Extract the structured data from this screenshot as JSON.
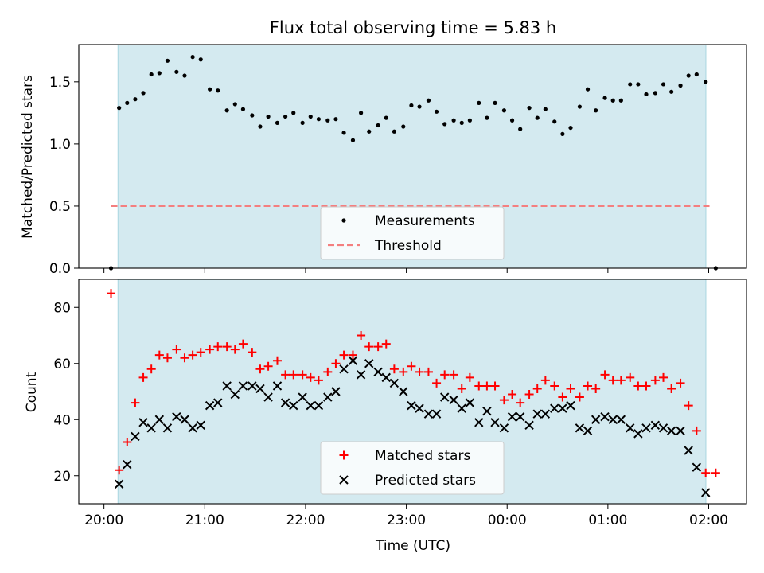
{
  "chart_data": [
    {
      "type": "scatter",
      "title": "Flux total observing time = 5.83 h",
      "xlabel": "",
      "ylabel": "Matched/Predicted stars",
      "ylim": [
        0,
        1.8
      ],
      "yticks": [
        0.0,
        0.5,
        1.0,
        1.5
      ],
      "ytick_labels": [
        "0.0",
        "0.5",
        "1.0",
        "1.5"
      ],
      "xlim_hours": [
        19.75,
        26.375
      ],
      "shaded_span_hours": [
        20.139,
        25.972
      ],
      "shade_color": "#d4eaf0",
      "legend_position": "lower-center",
      "series": [
        {
          "name": "Measurements",
          "marker": "dot",
          "color": "#000000",
          "points": [
            [
              20.07,
              0.0
            ],
            [
              20.15,
              1.29
            ],
            [
              20.23,
              1.33
            ],
            [
              20.31,
              1.36
            ],
            [
              20.39,
              1.41
            ],
            [
              20.47,
              1.56
            ],
            [
              20.55,
              1.57
            ],
            [
              20.63,
              1.67
            ],
            [
              20.72,
              1.58
            ],
            [
              20.8,
              1.55
            ],
            [
              20.88,
              1.7
            ],
            [
              20.96,
              1.68
            ],
            [
              21.05,
              1.44
            ],
            [
              21.13,
              1.43
            ],
            [
              21.22,
              1.27
            ],
            [
              21.3,
              1.32
            ],
            [
              21.38,
              1.28
            ],
            [
              21.47,
              1.23
            ],
            [
              21.55,
              1.14
            ],
            [
              21.63,
              1.22
            ],
            [
              21.72,
              1.17
            ],
            [
              21.8,
              1.22
            ],
            [
              21.88,
              1.25
            ],
            [
              21.97,
              1.17
            ],
            [
              22.05,
              1.22
            ],
            [
              22.13,
              1.2
            ],
            [
              22.22,
              1.19
            ],
            [
              22.3,
              1.2
            ],
            [
              22.38,
              1.09
            ],
            [
              22.47,
              1.03
            ],
            [
              22.55,
              1.25
            ],
            [
              22.63,
              1.1
            ],
            [
              22.72,
              1.15
            ],
            [
              22.8,
              1.21
            ],
            [
              22.88,
              1.1
            ],
            [
              22.97,
              1.14
            ],
            [
              23.05,
              1.31
            ],
            [
              23.13,
              1.3
            ],
            [
              23.22,
              1.35
            ],
            [
              23.3,
              1.26
            ],
            [
              23.38,
              1.16
            ],
            [
              23.47,
              1.19
            ],
            [
              23.55,
              1.17
            ],
            [
              23.63,
              1.19
            ],
            [
              23.72,
              1.33
            ],
            [
              23.8,
              1.21
            ],
            [
              23.88,
              1.33
            ],
            [
              23.97,
              1.27
            ],
            [
              24.05,
              1.19
            ],
            [
              24.13,
              1.12
            ],
            [
              24.22,
              1.29
            ],
            [
              24.3,
              1.21
            ],
            [
              24.38,
              1.28
            ],
            [
              24.47,
              1.18
            ],
            [
              24.55,
              1.08
            ],
            [
              24.63,
              1.13
            ],
            [
              24.72,
              1.3
            ],
            [
              24.8,
              1.44
            ],
            [
              24.88,
              1.27
            ],
            [
              24.97,
              1.37
            ],
            [
              25.05,
              1.35
            ],
            [
              25.13,
              1.35
            ],
            [
              25.22,
              1.48
            ],
            [
              25.3,
              1.48
            ],
            [
              25.38,
              1.4
            ],
            [
              25.47,
              1.41
            ],
            [
              25.55,
              1.48
            ],
            [
              25.63,
              1.42
            ],
            [
              25.72,
              1.47
            ],
            [
              25.8,
              1.55
            ],
            [
              25.88,
              1.56
            ],
            [
              25.97,
              1.5
            ],
            [
              26.07,
              0.0
            ]
          ]
        },
        {
          "name": "Threshold",
          "marker": "dashed-line",
          "color": "#f47f7f",
          "points": [
            [
              20.07,
              0.5
            ],
            [
              26.03,
              0.5
            ]
          ]
        }
      ]
    },
    {
      "type": "scatter",
      "title": "",
      "xlabel": "Time (UTC)",
      "ylabel": "Count",
      "ylim": [
        10,
        90
      ],
      "yticks": [
        20,
        40,
        60,
        80
      ],
      "ytick_labels": [
        "20",
        "40",
        "60",
        "80"
      ],
      "xlim_hours": [
        19.75,
        26.375
      ],
      "xticks_hours": [
        20,
        21,
        22,
        23,
        24,
        25,
        26
      ],
      "xtick_labels": [
        "20:00",
        "21:00",
        "22:00",
        "23:00",
        "00:00",
        "01:00",
        "02:00"
      ],
      "shaded_span_hours": [
        20.139,
        25.972
      ],
      "shade_color": "#d4eaf0",
      "legend_position": "lower-center",
      "series": [
        {
          "name": "Matched stars",
          "marker": "plus",
          "color": "#ff0000",
          "points": [
            [
              20.07,
              85
            ],
            [
              20.15,
              22
            ],
            [
              20.23,
              32
            ],
            [
              20.31,
              46
            ],
            [
              20.39,
              55
            ],
            [
              20.47,
              58
            ],
            [
              20.55,
              63
            ],
            [
              20.63,
              62
            ],
            [
              20.72,
              65
            ],
            [
              20.8,
              62
            ],
            [
              20.88,
              63
            ],
            [
              20.96,
              64
            ],
            [
              21.05,
              65
            ],
            [
              21.13,
              66
            ],
            [
              21.22,
              66
            ],
            [
              21.3,
              65
            ],
            [
              21.38,
              67
            ],
            [
              21.47,
              64
            ],
            [
              21.55,
              58
            ],
            [
              21.63,
              59
            ],
            [
              21.72,
              61
            ],
            [
              21.8,
              56
            ],
            [
              21.88,
              56
            ],
            [
              21.97,
              56
            ],
            [
              22.05,
              55
            ],
            [
              22.13,
              54
            ],
            [
              22.22,
              57
            ],
            [
              22.3,
              60
            ],
            [
              22.38,
              63
            ],
            [
              22.47,
              63
            ],
            [
              22.55,
              70
            ],
            [
              22.63,
              66
            ],
            [
              22.72,
              66
            ],
            [
              22.8,
              67
            ],
            [
              22.88,
              58
            ],
            [
              22.97,
              57
            ],
            [
              23.05,
              59
            ],
            [
              23.13,
              57
            ],
            [
              23.22,
              57
            ],
            [
              23.3,
              53
            ],
            [
              23.38,
              56
            ],
            [
              23.47,
              56
            ],
            [
              23.55,
              51
            ],
            [
              23.63,
              55
            ],
            [
              23.72,
              52
            ],
            [
              23.8,
              52
            ],
            [
              23.88,
              52
            ],
            [
              23.97,
              47
            ],
            [
              24.05,
              49
            ],
            [
              24.13,
              46
            ],
            [
              24.22,
              49
            ],
            [
              24.3,
              51
            ],
            [
              24.38,
              54
            ],
            [
              24.47,
              52
            ],
            [
              24.55,
              48
            ],
            [
              24.63,
              51
            ],
            [
              24.72,
              48
            ],
            [
              24.8,
              52
            ],
            [
              24.88,
              51
            ],
            [
              24.97,
              56
            ],
            [
              25.05,
              54
            ],
            [
              25.13,
              54
            ],
            [
              25.22,
              55
            ],
            [
              25.3,
              52
            ],
            [
              25.38,
              52
            ],
            [
              25.47,
              54
            ],
            [
              25.55,
              55
            ],
            [
              25.63,
              51
            ],
            [
              25.72,
              53
            ],
            [
              25.8,
              45
            ],
            [
              25.88,
              36
            ],
            [
              25.97,
              21
            ],
            [
              26.07,
              21
            ]
          ]
        },
        {
          "name": "Predicted stars",
          "marker": "x",
          "color": "#000000",
          "points": [
            [
              20.15,
              17
            ],
            [
              20.23,
              24
            ],
            [
              20.31,
              34
            ],
            [
              20.39,
              39
            ],
            [
              20.47,
              37
            ],
            [
              20.55,
              40
            ],
            [
              20.63,
              37
            ],
            [
              20.72,
              41
            ],
            [
              20.8,
              40
            ],
            [
              20.88,
              37
            ],
            [
              20.96,
              38
            ],
            [
              21.05,
              45
            ],
            [
              21.13,
              46
            ],
            [
              21.22,
              52
            ],
            [
              21.3,
              49
            ],
            [
              21.38,
              52
            ],
            [
              21.47,
              52
            ],
            [
              21.55,
              51
            ],
            [
              21.63,
              48
            ],
            [
              21.72,
              52
            ],
            [
              21.8,
              46
            ],
            [
              21.88,
              45
            ],
            [
              21.97,
              48
            ],
            [
              22.05,
              45
            ],
            [
              22.13,
              45
            ],
            [
              22.22,
              48
            ],
            [
              22.3,
              50
            ],
            [
              22.38,
              58
            ],
            [
              22.47,
              61
            ],
            [
              22.55,
              56
            ],
            [
              22.63,
              60
            ],
            [
              22.72,
              57
            ],
            [
              22.8,
              55
            ],
            [
              22.88,
              53
            ],
            [
              22.97,
              50
            ],
            [
              23.05,
              45
            ],
            [
              23.13,
              44
            ],
            [
              23.22,
              42
            ],
            [
              23.3,
              42
            ],
            [
              23.38,
              48
            ],
            [
              23.47,
              47
            ],
            [
              23.55,
              44
            ],
            [
              23.63,
              46
            ],
            [
              23.72,
              39
            ],
            [
              23.8,
              43
            ],
            [
              23.88,
              39
            ],
            [
              23.97,
              37
            ],
            [
              24.05,
              41
            ],
            [
              24.13,
              41
            ],
            [
              24.22,
              38
            ],
            [
              24.3,
              42
            ],
            [
              24.38,
              42
            ],
            [
              24.47,
              44
            ],
            [
              24.55,
              44
            ],
            [
              24.63,
              45
            ],
            [
              24.72,
              37
            ],
            [
              24.8,
              36
            ],
            [
              24.88,
              40
            ],
            [
              24.97,
              41
            ],
            [
              25.05,
              40
            ],
            [
              25.13,
              40
            ],
            [
              25.22,
              37
            ],
            [
              25.3,
              35
            ],
            [
              25.38,
              37
            ],
            [
              25.47,
              38
            ],
            [
              25.55,
              37
            ],
            [
              25.63,
              36
            ],
            [
              25.72,
              36
            ],
            [
              25.8,
              29
            ],
            [
              25.88,
              23
            ],
            [
              25.97,
              14
            ]
          ]
        }
      ]
    }
  ]
}
